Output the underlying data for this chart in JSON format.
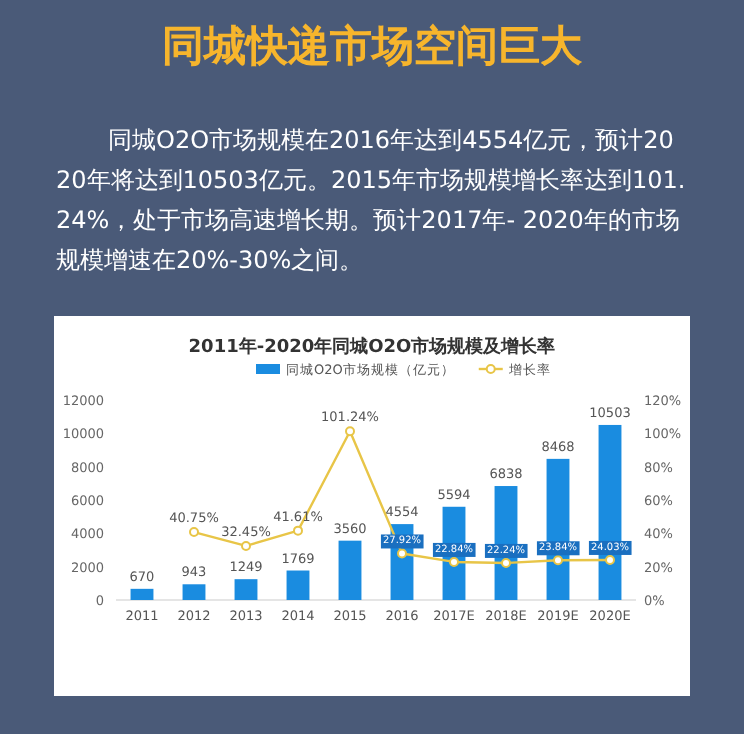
{
  "chart_data": {
    "type": "bar",
    "title": "同城快递市场空间巨大",
    "subtitle": "2011年-2020年同城O2O市场规模及增长率",
    "annotations": [
      "同城O2O市场规模在2016年达到4554亿元，预计2020年将达到10503亿元。2015年市场规模增长率达到101.24%，处于市场高速增长期。预计2017年- 2020年的市场规模增速在20%-30%之间。"
    ],
    "categories": [
      "2011",
      "2012",
      "2013",
      "2014",
      "2015",
      "2016",
      "2017E",
      "2018E",
      "2019E",
      "2020E"
    ],
    "series": [
      {
        "name": "同城O2O市场规模（亿元）",
        "color": "#1a8ce0",
        "values": [
          670,
          943,
          1249,
          1769,
          3560,
          4554,
          5594,
          6838,
          8468,
          10503
        ],
        "data_labels": true
      },
      {
        "name": "增长率",
        "type": "line",
        "axis": "y2",
        "color": "#e8c547",
        "marker": "circle",
        "values": [
          null,
          40.75,
          32.45,
          41.61,
          101.24,
          27.92,
          22.84,
          22.24,
          23.84,
          24.03
        ],
        "value_labels": [
          null,
          "40.75%",
          "32.45%",
          "41.61%",
          "101.24%",
          "27.92%",
          "22.84%",
          "22.24%",
          "23.84%",
          "24.03%"
        ]
      }
    ],
    "ylim": [
      0,
      12000
    ],
    "yticks": [
      0,
      2000,
      4000,
      6000,
      8000,
      10000,
      12000
    ],
    "y2lim": [
      0,
      120
    ],
    "y2ticks": [
      {
        "value": 0,
        "label": "0%"
      },
      {
        "value": 20,
        "label": "20%"
      },
      {
        "value": 40,
        "label": "40%"
      },
      {
        "value": 60,
        "label": "60%"
      },
      {
        "value": 80,
        "label": "80%"
      },
      {
        "value": 100,
        "label": "100%"
      },
      {
        "value": 120,
        "label": "120%"
      }
    ],
    "legend": "top",
    "grid": false
  }
}
